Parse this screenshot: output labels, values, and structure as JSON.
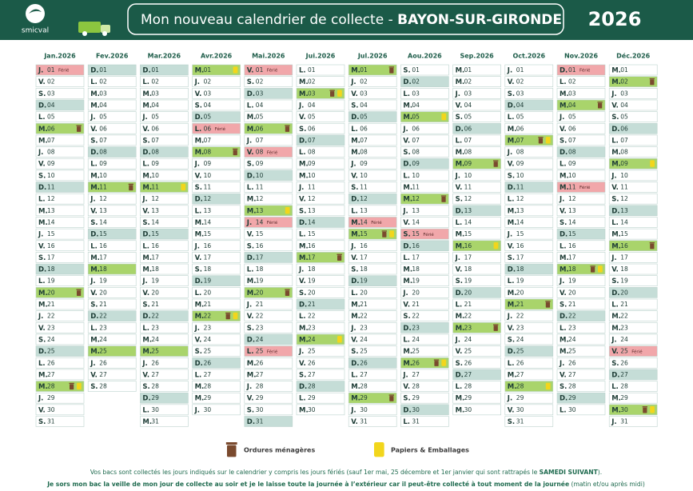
{
  "header": {
    "logo": "smicval",
    "title": "Mon nouveau calendrier de collecte -",
    "town": "BAYON-SUR-GIRONDE",
    "year": "2026"
  },
  "calendar": {
    "shade_day": "D.",
    "months": [
      {
        "name": "Jan.2026",
        "letters": [
          "J.",
          "V.",
          "S.",
          "D.",
          "L.",
          "M.",
          "M.",
          "J.",
          "V.",
          "S.",
          "D.",
          "L.",
          "M.",
          "M.",
          "J.",
          "V.",
          "S.",
          "D.",
          "L.",
          "M.",
          "M.",
          "J.",
          "V.",
          "S.",
          "D.",
          "L.",
          "M.",
          "M.",
          "J.",
          "V.",
          "S."
        ],
        "numbers": [
          "01",
          "02",
          "03",
          "04",
          "05",
          "06",
          "07",
          "08",
          "09",
          "10",
          "11",
          "12",
          "13",
          "14",
          "15",
          "16",
          "17",
          "18",
          "19",
          "20",
          "21",
          "22",
          "23",
          "24",
          "25",
          "26",
          "27",
          "28",
          "29",
          "30",
          "31"
        ],
        "bins": {
          "06": [
            "om"
          ],
          "20": [
            "om"
          ],
          "28": [
            "om",
            "pe"
          ]
        },
        "notes": {
          "01": "Férié"
        }
      },
      {
        "name": "Fev.2026",
        "letters": [
          "D.",
          "L.",
          "M.",
          "M.",
          "J.",
          "V.",
          "S.",
          "D.",
          "L.",
          "M.",
          "M.",
          "J.",
          "V.",
          "S.",
          "D.",
          "L.",
          "M.",
          "M.",
          "J.",
          "V.",
          "S.",
          "D.",
          "L.",
          "M.",
          "M.",
          "J.",
          "V.",
          "S."
        ],
        "numbers": [
          "01",
          "02",
          "03",
          "04",
          "05",
          "06",
          "07",
          "08",
          "09",
          "10",
          "11",
          "12",
          "13",
          "14",
          "15",
          "16",
          "17",
          "18",
          "19",
          "20",
          "21",
          "22",
          "23",
          "24",
          "25",
          "26",
          "27",
          "28"
        ],
        "bins": {
          "11": [
            "om"
          ],
          "18": [],
          "25": []
        }
      },
      {
        "name": "Mar.2026",
        "letters": [
          "D.",
          "L.",
          "M.",
          "M.",
          "J.",
          "V.",
          "S.",
          "D.",
          "L.",
          "M.",
          "M.",
          "J.",
          "V.",
          "S.",
          "D.",
          "L.",
          "M.",
          "M.",
          "J.",
          "V.",
          "S.",
          "D.",
          "L.",
          "M.",
          "M.",
          "J.",
          "V.",
          "S.",
          "D.",
          "L.",
          "M."
        ],
        "numbers": [
          "01",
          "02",
          "03",
          "04",
          "05",
          "06",
          "07",
          "08",
          "09",
          "10",
          "11",
          "12",
          "13",
          "14",
          "15",
          "16",
          "17",
          "18",
          "19",
          "20",
          "21",
          "22",
          "23",
          "24",
          "25",
          "26",
          "27",
          "28",
          "29",
          "30",
          "31"
        ],
        "bins": {
          "11": [
            "pe"
          ],
          "25": []
        }
      },
      {
        "name": "Avr.2026",
        "letters": [
          "M.",
          "J.",
          "V.",
          "S.",
          "D.",
          "L.",
          "M.",
          "M.",
          "J.",
          "V.",
          "S.",
          "D.",
          "L.",
          "M.",
          "M.",
          "J.",
          "V.",
          "S.",
          "D.",
          "L.",
          "M.",
          "M.",
          "J.",
          "V.",
          "S.",
          "D.",
          "L.",
          "M.",
          "M.",
          "J."
        ],
        "numbers": [
          "01",
          "02",
          "03",
          "04",
          "05",
          "06",
          "07",
          "08",
          "09",
          "10",
          "11",
          "12",
          "13",
          "14",
          "15",
          "16",
          "17",
          "18",
          "19",
          "20",
          "21",
          "22",
          "23",
          "24",
          "25",
          "26",
          "27",
          "28",
          "29",
          "30"
        ],
        "bins": {
          "01": [
            "pe"
          ],
          "08": [
            "om"
          ],
          "22": [
            "om",
            "pe"
          ]
        },
        "notes": {
          "06": "Férié"
        }
      },
      {
        "name": "Mai.2026",
        "letters": [
          "V.",
          "S.",
          "D.",
          "L.",
          "M.",
          "M.",
          "J.",
          "V.",
          "S.",
          "D.",
          "L.",
          "M.",
          "M.",
          "J.",
          "V.",
          "S.",
          "D.",
          "L.",
          "M.",
          "M.",
          "J.",
          "V.",
          "S.",
          "D.",
          "L.",
          "M.",
          "M.",
          "J.",
          "V.",
          "S.",
          "D."
        ],
        "numbers": [
          "01",
          "02",
          "03",
          "04",
          "05",
          "06",
          "07",
          "08",
          "09",
          "10",
          "11",
          "12",
          "13",
          "14",
          "15",
          "16",
          "17",
          "18",
          "19",
          "20",
          "21",
          "22",
          "23",
          "24",
          "25",
          "26",
          "27",
          "28",
          "29",
          "30",
          "31"
        ],
        "bins": {
          "06": [
            "om"
          ],
          "13": [
            "pe"
          ],
          "20": [
            "om"
          ]
        },
        "notes": {
          "01": "Férié",
          "08": "Férié",
          "14": "Férié",
          "25": "Férié"
        }
      },
      {
        "name": "Jui.2026",
        "letters": [
          "L.",
          "M.",
          "M.",
          "J.",
          "V.",
          "S.",
          "D.",
          "L.",
          "M.",
          "M.",
          "J.",
          "V.",
          "S.",
          "D.",
          "L.",
          "M.",
          "M.",
          "J.",
          "V.",
          "S.",
          "D.",
          "L.",
          "M.",
          "M.",
          "J.",
          "V.",
          "S.",
          "D.",
          "L.",
          "M."
        ],
        "numbers": [
          "01",
          "02",
          "03",
          "04",
          "05",
          "06",
          "07",
          "08",
          "09",
          "10",
          "11",
          "12",
          "13",
          "14",
          "15",
          "16",
          "17",
          "18",
          "19",
          "20",
          "21",
          "22",
          "23",
          "24",
          "25",
          "26",
          "27",
          "28",
          "29",
          "30"
        ],
        "bins": {
          "03": [
            "om",
            "pe"
          ],
          "17": [
            "om"
          ],
          "24": [
            "pe"
          ]
        }
      },
      {
        "name": "Jul.2026",
        "letters": [
          "M.",
          "J.",
          "V.",
          "S.",
          "D.",
          "L.",
          "M.",
          "M.",
          "J.",
          "V.",
          "S.",
          "D.",
          "L.",
          "M.",
          "M.",
          "J.",
          "V.",
          "S.",
          "D.",
          "L.",
          "M.",
          "M.",
          "J.",
          "V.",
          "S.",
          "D.",
          "L.",
          "M.",
          "M.",
          "J.",
          "V."
        ],
        "numbers": [
          "01",
          "02",
          "03",
          "04",
          "05",
          "06",
          "07",
          "08",
          "09",
          "10",
          "11",
          "12",
          "13",
          "14",
          "15",
          "16",
          "17",
          "18",
          "19",
          "20",
          "21",
          "22",
          "23",
          "24",
          "25",
          "26",
          "27",
          "28",
          "29",
          "30",
          "31"
        ],
        "bins": {
          "01": [
            "om"
          ],
          "15": [
            "om",
            "pe"
          ],
          "29": [
            "om"
          ]
        },
        "notes": {
          "14": "Férié"
        }
      },
      {
        "name": "Aou.2026",
        "letters": [
          "S.",
          "D.",
          "L.",
          "M.",
          "M.",
          "J.",
          "V.",
          "S.",
          "D.",
          "L.",
          "M.",
          "M.",
          "J.",
          "V.",
          "S.",
          "D.",
          "L.",
          "M.",
          "M.",
          "J.",
          "V.",
          "S.",
          "D.",
          "L.",
          "M.",
          "M.",
          "J.",
          "V.",
          "S.",
          "D.",
          "L."
        ],
        "numbers": [
          "01",
          "02",
          "03",
          "04",
          "05",
          "06",
          "07",
          "08",
          "09",
          "10",
          "11",
          "12",
          "13",
          "14",
          "15",
          "16",
          "17",
          "18",
          "19",
          "20",
          "21",
          "22",
          "23",
          "24",
          "25",
          "26",
          "27",
          "28",
          "29",
          "30",
          "31"
        ],
        "bins": {
          "05": [
            "pe"
          ],
          "12": [
            "om"
          ],
          "26": [
            "om",
            "pe"
          ]
        },
        "notes": {
          "15": "Férié"
        }
      },
      {
        "name": "Sep.2026",
        "letters": [
          "M.",
          "M.",
          "J.",
          "V.",
          "S.",
          "D.",
          "L.",
          "M.",
          "M.",
          "J.",
          "V.",
          "S.",
          "D.",
          "L.",
          "M.",
          "M.",
          "J.",
          "V.",
          "S.",
          "D.",
          "L.",
          "M.",
          "M.",
          "J.",
          "V.",
          "S.",
          "D.",
          "L.",
          "M.",
          "M."
        ],
        "numbers": [
          "01",
          "02",
          "03",
          "04",
          "05",
          "06",
          "07",
          "08",
          "09",
          "10",
          "11",
          "12",
          "13",
          "14",
          "15",
          "16",
          "17",
          "18",
          "19",
          "20",
          "21",
          "22",
          "23",
          "24",
          "25",
          "26",
          "27",
          "28",
          "29",
          "30"
        ],
        "bins": {
          "09": [
            "om"
          ],
          "16": [
            "pe"
          ],
          "23": [
            "om"
          ]
        }
      },
      {
        "name": "Oct.2026",
        "letters": [
          "J.",
          "V.",
          "S.",
          "D.",
          "L.",
          "M.",
          "M.",
          "J.",
          "V.",
          "S.",
          "D.",
          "L.",
          "M.",
          "M.",
          "J.",
          "V.",
          "S.",
          "D.",
          "L.",
          "M.",
          "M.",
          "J.",
          "V.",
          "S.",
          "D.",
          "L.",
          "M.",
          "M.",
          "J.",
          "V.",
          "S."
        ],
        "numbers": [
          "01",
          "02",
          "03",
          "04",
          "05",
          "06",
          "07",
          "08",
          "09",
          "10",
          "11",
          "12",
          "13",
          "14",
          "15",
          "16",
          "17",
          "18",
          "19",
          "20",
          "21",
          "22",
          "23",
          "24",
          "25",
          "26",
          "27",
          "28",
          "29",
          "30",
          "31"
        ],
        "bins": {
          "07": [
            "om",
            "pe"
          ],
          "21": [
            "om"
          ],
          "28": [
            "pe"
          ]
        }
      },
      {
        "name": "Nov.2026",
        "letters": [
          "D.",
          "L.",
          "M.",
          "M.",
          "J.",
          "V.",
          "S.",
          "D.",
          "L.",
          "M.",
          "M.",
          "J.",
          "V.",
          "S.",
          "D.",
          "L.",
          "M.",
          "M.",
          "J.",
          "V.",
          "S.",
          "D.",
          "L.",
          "M.",
          "M.",
          "J.",
          "V.",
          "S.",
          "D.",
          "L."
        ],
        "numbers": [
          "01",
          "02",
          "03",
          "04",
          "05",
          "06",
          "07",
          "08",
          "09",
          "10",
          "11",
          "12",
          "13",
          "14",
          "15",
          "16",
          "17",
          "18",
          "19",
          "20",
          "21",
          "22",
          "23",
          "24",
          "25",
          "26",
          "27",
          "28",
          "29",
          "30"
        ],
        "bins": {
          "04": [
            "om"
          ],
          "18": [
            "om",
            "pe"
          ]
        },
        "notes": {
          "01": "Férié",
          "11": "Férié"
        }
      },
      {
        "name": "Déc.2026",
        "letters": [
          "M.",
          "M.",
          "J.",
          "V.",
          "S.",
          "D.",
          "L.",
          "M.",
          "M.",
          "J.",
          "V.",
          "S.",
          "D.",
          "L.",
          "M.",
          "M.",
          "J.",
          "V.",
          "S.",
          "D.",
          "L.",
          "M.",
          "M.",
          "J.",
          "V.",
          "S.",
          "D.",
          "L.",
          "M.",
          "M.",
          "J."
        ],
        "numbers": [
          "01",
          "02",
          "03",
          "04",
          "05",
          "06",
          "07",
          "08",
          "09",
          "10",
          "11",
          "12",
          "13",
          "14",
          "15",
          "16",
          "17",
          "18",
          "19",
          "20",
          "21",
          "22",
          "23",
          "24",
          "25",
          "26",
          "27",
          "28",
          "29",
          "30",
          "31"
        ],
        "bins": {
          "02": [
            "om"
          ],
          "09": [
            "pe"
          ],
          "16": [
            "om"
          ],
          "30": [
            "om",
            "pe"
          ]
        },
        "notes": {
          "25": "Férié"
        }
      }
    ]
  },
  "legend": [
    {
      "id": "om",
      "label": "Ordures ménagères",
      "color": "#7a4a2e"
    },
    {
      "id": "pe",
      "label": "Papiers & Emballages",
      "color": "#f2d61c"
    }
  ],
  "footer": {
    "line1": "Vos bacs sont collectés les jours indiqués sur le calendrier y compris les jours fériés (sauf 1er mai, 25 décembre et 1er janvier qui sont rattrapés le",
    "line1_bold": "SAMEDI SUIVANT",
    "line1_end": ").",
    "line2_bold": "Je sors mon bac la veille de mon jour de collecte au soir et je le laisse toute la journée à l’extérieur car il peut-être collecté à tout moment de la journée",
    "line2": "(matin et/ou après midi)"
  }
}
